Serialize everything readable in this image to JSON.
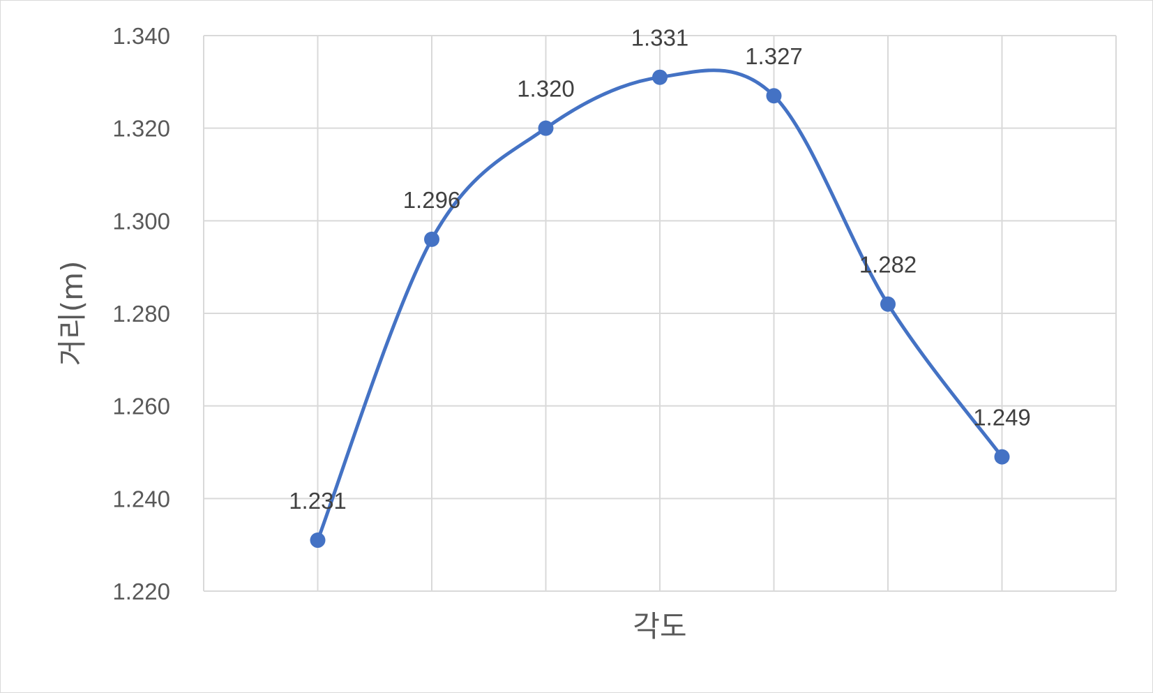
{
  "chart_data": {
    "type": "line",
    "smooth": true,
    "title": "",
    "xlabel": "각도",
    "ylabel": "거리(m)",
    "x": [
      1,
      2,
      3,
      4,
      5,
      6,
      7
    ],
    "ylim": [
      1.22,
      1.34
    ],
    "yticks": [
      "1.220",
      "1.240",
      "1.260",
      "1.280",
      "1.300",
      "1.320",
      "1.340"
    ],
    "ytick_values": [
      1.22,
      1.24,
      1.26,
      1.28,
      1.3,
      1.32,
      1.34
    ],
    "series": [
      {
        "values": [
          1.231,
          1.296,
          1.32,
          1.331,
          1.327,
          1.282,
          1.249
        ],
        "labels": [
          "1.231",
          "1.296",
          "1.320",
          "1.331",
          "1.327",
          "1.282",
          "1.249"
        ],
        "color": "#4472c4"
      }
    ],
    "grid": true,
    "legend": "none"
  }
}
